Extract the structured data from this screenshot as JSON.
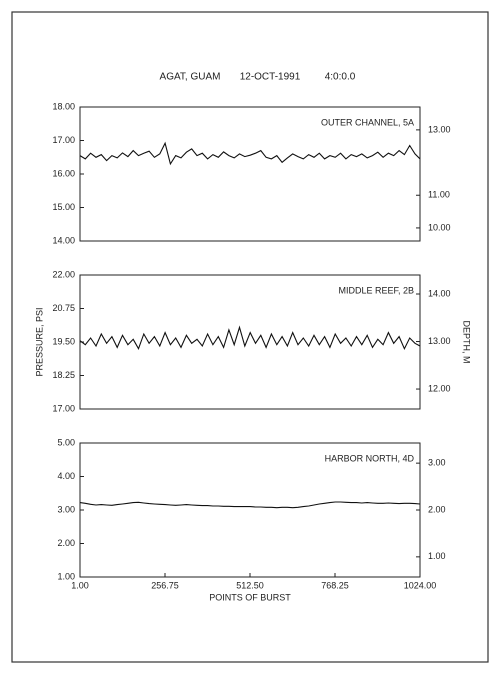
{
  "header": {
    "location": "AGAT, GUAM",
    "date": "12-OCT-1991",
    "time": "4:0:0.0"
  },
  "chart_data": [
    {
      "type": "line",
      "annotation": "OUTER CHANNEL, 5A",
      "color": "#111111",
      "x": [
        1,
        17,
        33,
        49,
        65,
        81,
        97,
        113,
        129,
        145,
        161,
        177,
        193,
        209,
        225,
        241,
        257,
        273,
        289,
        305,
        321,
        337,
        353,
        369,
        385,
        401,
        417,
        433,
        449,
        465,
        481,
        497,
        513,
        529,
        545,
        561,
        577,
        593,
        609,
        625,
        641,
        657,
        673,
        689,
        705,
        721,
        737,
        753,
        769,
        785,
        801,
        817,
        833,
        849,
        865,
        881,
        897,
        913,
        929,
        945,
        961,
        977,
        993,
        1009,
        1024
      ],
      "values": [
        16.55,
        16.45,
        16.62,
        16.5,
        16.58,
        16.4,
        16.55,
        16.48,
        16.63,
        16.52,
        16.7,
        16.55,
        16.62,
        16.68,
        16.5,
        16.6,
        16.92,
        16.3,
        16.55,
        16.48,
        16.65,
        16.75,
        16.55,
        16.62,
        16.45,
        16.58,
        16.5,
        16.66,
        16.55,
        16.48,
        16.6,
        16.52,
        16.56,
        16.62,
        16.7,
        16.5,
        16.45,
        16.55,
        16.35,
        16.48,
        16.6,
        16.52,
        16.45,
        16.58,
        16.5,
        16.62,
        16.45,
        16.55,
        16.5,
        16.62,
        16.45,
        16.58,
        16.52,
        16.6,
        16.48,
        16.55,
        16.65,
        16.5,
        16.62,
        16.55,
        16.7,
        16.58,
        16.85,
        16.6,
        16.45
      ],
      "xlim": [
        1,
        1024
      ],
      "ylim": [
        14,
        18
      ],
      "yticks": [
        {
          "value": 14,
          "label": "14.00"
        },
        {
          "value": 15,
          "label": "15.00"
        },
        {
          "value": 16,
          "label": "16.00"
        },
        {
          "value": 17,
          "label": "17.00"
        },
        {
          "value": 18,
          "label": "18.00"
        }
      ],
      "y2lim": [
        9.6,
        13.7
      ],
      "y2ticks": [
        {
          "value": 10,
          "label": "10.00"
        },
        {
          "value": 11,
          "label": "11.00"
        },
        {
          "value": 13,
          "label": "13.00"
        }
      ]
    },
    {
      "type": "line",
      "annotation": "MIDDLE REEF, 2B",
      "color": "#111111",
      "ylabel": "PRESSURE, PSI",
      "y2label": "DEPTH, M",
      "x": [
        1,
        17,
        33,
        49,
        65,
        81,
        97,
        113,
        129,
        145,
        161,
        177,
        193,
        209,
        225,
        241,
        257,
        273,
        289,
        305,
        321,
        337,
        353,
        369,
        385,
        401,
        417,
        433,
        449,
        465,
        481,
        497,
        513,
        529,
        545,
        561,
        577,
        593,
        609,
        625,
        641,
        657,
        673,
        689,
        705,
        721,
        737,
        753,
        769,
        785,
        801,
        817,
        833,
        849,
        865,
        881,
        897,
        913,
        929,
        945,
        961,
        977,
        993,
        1009,
        1024
      ],
      "values": [
        19.55,
        19.4,
        19.65,
        19.35,
        19.8,
        19.45,
        19.7,
        19.3,
        19.75,
        19.4,
        19.6,
        19.25,
        19.8,
        19.45,
        19.7,
        19.35,
        19.85,
        19.4,
        19.65,
        19.3,
        19.75,
        19.45,
        19.6,
        19.35,
        19.8,
        19.4,
        19.7,
        19.3,
        19.95,
        19.4,
        20.05,
        19.35,
        19.85,
        19.45,
        19.75,
        19.3,
        19.8,
        19.4,
        19.7,
        19.35,
        19.85,
        19.4,
        19.65,
        19.35,
        19.75,
        19.4,
        19.7,
        19.3,
        19.8,
        19.45,
        19.65,
        19.35,
        19.7,
        19.4,
        19.75,
        19.3,
        19.6,
        19.4,
        19.85,
        19.45,
        19.7,
        19.25,
        19.65,
        19.45,
        19.35
      ],
      "xlim": [
        1,
        1024
      ],
      "ylim": [
        17,
        22
      ],
      "yticks": [
        {
          "value": 17,
          "label": "17.00"
        },
        {
          "value": 18.25,
          "label": "18.25"
        },
        {
          "value": 19.5,
          "label": "19.50"
        },
        {
          "value": 20.75,
          "label": "20.75"
        },
        {
          "value": 22,
          "label": "22.00"
        }
      ],
      "y2lim": [
        11.58,
        14.4
      ],
      "y2ticks": [
        {
          "value": 12,
          "label": "12.00"
        },
        {
          "value": 13,
          "label": "13.00"
        },
        {
          "value": 14,
          "label": "14.00"
        }
      ]
    },
    {
      "type": "line",
      "annotation": "HARBOR NORTH, 4D",
      "color": "#111111",
      "xlabel": "POINTS OF BURST",
      "x": [
        1,
        17,
        33,
        49,
        65,
        81,
        97,
        113,
        129,
        145,
        161,
        177,
        193,
        209,
        225,
        241,
        257,
        273,
        289,
        305,
        321,
        337,
        353,
        369,
        385,
        401,
        417,
        433,
        449,
        465,
        481,
        497,
        513,
        529,
        545,
        561,
        577,
        593,
        609,
        625,
        641,
        657,
        673,
        689,
        705,
        721,
        737,
        753,
        769,
        785,
        801,
        817,
        833,
        849,
        865,
        881,
        897,
        913,
        929,
        945,
        961,
        977,
        993,
        1009,
        1024
      ],
      "values": [
        3.22,
        3.2,
        3.17,
        3.15,
        3.16,
        3.15,
        3.14,
        3.16,
        3.18,
        3.2,
        3.22,
        3.23,
        3.21,
        3.19,
        3.18,
        3.17,
        3.16,
        3.15,
        3.14,
        3.15,
        3.16,
        3.15,
        3.14,
        3.13,
        3.13,
        3.12,
        3.12,
        3.11,
        3.11,
        3.1,
        3.1,
        3.1,
        3.1,
        3.09,
        3.09,
        3.08,
        3.08,
        3.07,
        3.08,
        3.08,
        3.07,
        3.08,
        3.1,
        3.12,
        3.15,
        3.18,
        3.2,
        3.22,
        3.24,
        3.24,
        3.23,
        3.22,
        3.22,
        3.21,
        3.22,
        3.21,
        3.2,
        3.2,
        3.21,
        3.2,
        3.19,
        3.2,
        3.2,
        3.19,
        3.18
      ],
      "xlim": [
        1,
        1024
      ],
      "xticks": [
        {
          "value": 1,
          "label": "1.00"
        },
        {
          "value": 256.75,
          "label": "256.75"
        },
        {
          "value": 512.5,
          "label": "512.50"
        },
        {
          "value": 768.25,
          "label": "768.25"
        },
        {
          "value": 1024,
          "label": "1024.00"
        }
      ],
      "ylim": [
        1,
        5
      ],
      "yticks": [
        {
          "value": 1,
          "label": "1.00"
        },
        {
          "value": 2,
          "label": "2.00"
        },
        {
          "value": 3,
          "label": "3.00"
        },
        {
          "value": 4,
          "label": "4.00"
        },
        {
          "value": 5,
          "label": "5.00"
        }
      ],
      "y2lim": [
        0.57,
        3.43
      ],
      "y2ticks": [
        {
          "value": 1,
          "label": "1.00"
        },
        {
          "value": 2,
          "label": "2.00"
        },
        {
          "value": 3,
          "label": "3.00"
        }
      ]
    }
  ]
}
